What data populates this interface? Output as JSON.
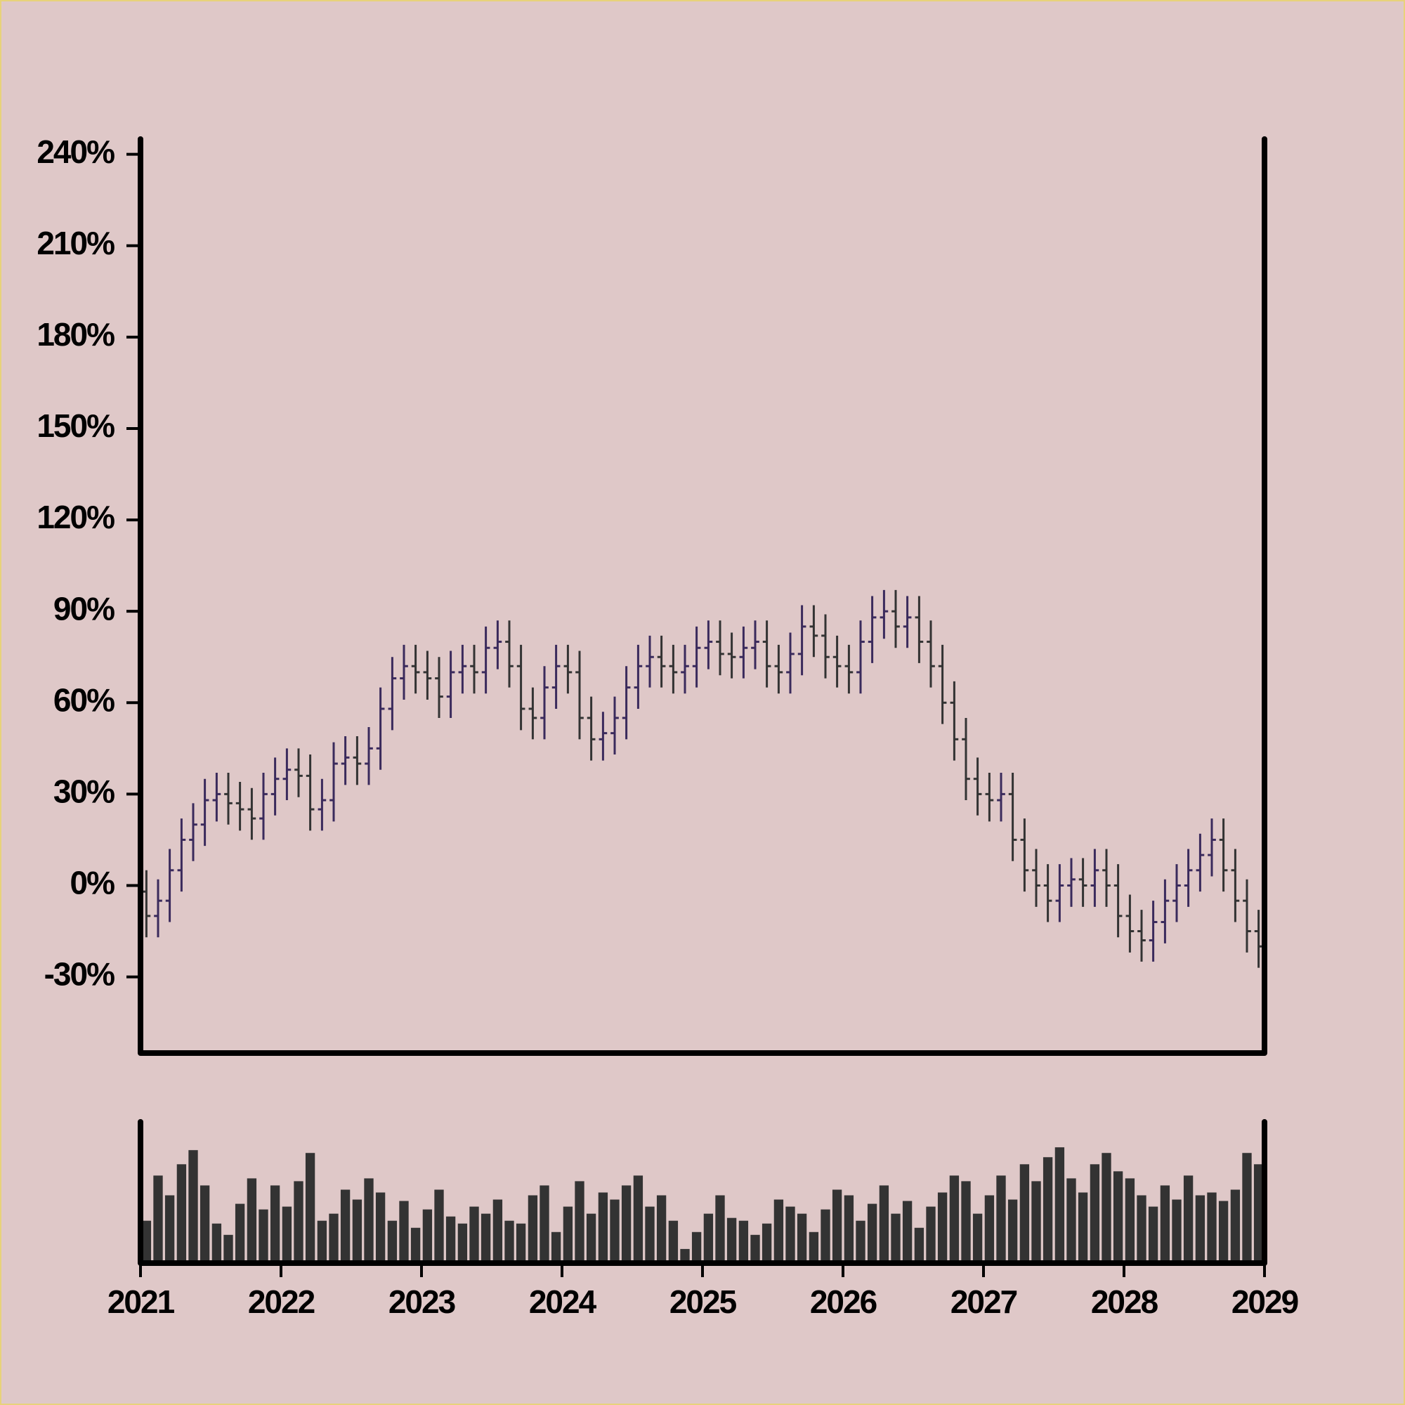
{
  "chart_data": {
    "type": "ohlc",
    "x": [
      2021.042,
      2021.125,
      2021.208,
      2021.292,
      2021.375,
      2021.458,
      2021.542,
      2021.625,
      2021.708,
      2021.792,
      2021.875,
      2021.958,
      2022.042,
      2022.125,
      2022.208,
      2022.292,
      2022.375,
      2022.458,
      2022.542,
      2022.625,
      2022.708,
      2022.792,
      2022.875,
      2022.958,
      2023.042,
      2023.125,
      2023.208,
      2023.292,
      2023.375,
      2023.458,
      2023.542,
      2023.625,
      2023.708,
      2023.792,
      2023.875,
      2023.958,
      2024.042,
      2024.125,
      2024.208,
      2024.292,
      2024.375,
      2024.458,
      2024.542,
      2024.625,
      2024.708,
      2024.792,
      2024.875,
      2024.958,
      2025.042,
      2025.125,
      2025.208,
      2025.292,
      2025.375,
      2025.458,
      2025.542,
      2025.625,
      2025.708,
      2025.792,
      2025.875,
      2025.958,
      2026.042,
      2026.125,
      2026.208,
      2026.292,
      2026.375,
      2026.458,
      2026.542,
      2026.625,
      2026.708,
      2026.792,
      2026.875,
      2026.958,
      2027.042,
      2027.125,
      2027.208,
      2027.292,
      2027.375,
      2027.458,
      2027.542,
      2027.625,
      2027.708,
      2027.792,
      2027.875,
      2027.958,
      2028.042,
      2028.125,
      2028.208,
      2028.292,
      2028.375,
      2028.458,
      2028.542,
      2028.625,
      2028.708,
      2028.792,
      2028.875,
      2028.958
    ],
    "open": [
      -2,
      -10,
      -5,
      5,
      15,
      20,
      28,
      30,
      27,
      25,
      22,
      30,
      35,
      38,
      36,
      25,
      28,
      40,
      42,
      40,
      45,
      58,
      68,
      72,
      70,
      68,
      62,
      70,
      72,
      70,
      78,
      80,
      72,
      58,
      55,
      65,
      72,
      70,
      55,
      48,
      50,
      55,
      65,
      72,
      75,
      72,
      70,
      72,
      78,
      80,
      76,
      75,
      78,
      80,
      72,
      70,
      76,
      85,
      82,
      75,
      72,
      70,
      80,
      88,
      90,
      85,
      88,
      80,
      72,
      60,
      48,
      35,
      30,
      28,
      30,
      15,
      5,
      0,
      -5,
      0,
      2,
      0,
      5,
      0,
      -10,
      -15,
      -18,
      -12,
      -5,
      0,
      5,
      10,
      15,
      5,
      -5,
      -15
    ],
    "high": [
      5,
      2,
      12,
      22,
      27,
      35,
      37,
      37,
      34,
      32,
      37,
      42,
      45,
      45,
      43,
      35,
      47,
      49,
      49,
      52,
      65,
      75,
      79,
      79,
      77,
      75,
      77,
      79,
      79,
      85,
      87,
      87,
      79,
      65,
      72,
      79,
      79,
      77,
      62,
      57,
      62,
      72,
      79,
      82,
      82,
      79,
      79,
      85,
      87,
      87,
      83,
      85,
      87,
      87,
      79,
      83,
      92,
      92,
      89,
      82,
      79,
      87,
      95,
      97,
      97,
      95,
      95,
      87,
      79,
      67,
      55,
      42,
      37,
      37,
      37,
      22,
      12,
      7,
      7,
      9,
      9,
      12,
      12,
      7,
      -3,
      -8,
      -5,
      2,
      7,
      12,
      17,
      22,
      22,
      12,
      2,
      -8
    ],
    "low": [
      -17,
      -17,
      -12,
      -2,
      8,
      13,
      21,
      20,
      18,
      15,
      15,
      23,
      28,
      29,
      18,
      18,
      21,
      33,
      33,
      33,
      38,
      51,
      61,
      63,
      61,
      55,
      55,
      63,
      63,
      63,
      71,
      65,
      51,
      48,
      48,
      58,
      63,
      48,
      41,
      41,
      43,
      48,
      58,
      65,
      65,
      63,
      63,
      65,
      71,
      69,
      68,
      68,
      71,
      65,
      63,
      63,
      69,
      75,
      68,
      65,
      63,
      63,
      73,
      81,
      78,
      78,
      73,
      65,
      53,
      41,
      28,
      23,
      21,
      21,
      8,
      -2,
      -7,
      -12,
      -12,
      -7,
      -7,
      -7,
      -7,
      -17,
      -22,
      -25,
      -25,
      -19,
      -12,
      -7,
      -2,
      3,
      -2,
      -12,
      -22,
      -27
    ],
    "close": [
      -10,
      -5,
      5,
      15,
      20,
      28,
      30,
      27,
      25,
      22,
      30,
      35,
      38,
      36,
      25,
      28,
      40,
      42,
      40,
      45,
      58,
      68,
      72,
      70,
      68,
      62,
      70,
      72,
      70,
      78,
      80,
      72,
      58,
      55,
      65,
      72,
      70,
      55,
      48,
      50,
      55,
      65,
      72,
      75,
      72,
      70,
      72,
      78,
      80,
      76,
      75,
      78,
      80,
      72,
      70,
      76,
      85,
      82,
      75,
      72,
      70,
      80,
      88,
      90,
      85,
      88,
      80,
      72,
      60,
      48,
      35,
      30,
      28,
      30,
      15,
      5,
      0,
      -5,
      0,
      2,
      0,
      5,
      0,
      -10,
      -15,
      -18,
      -12,
      -5,
      0,
      5,
      10,
      15,
      5,
      -5,
      -15,
      -20
    ],
    "volume": [
      30,
      62,
      48,
      70,
      80,
      55,
      28,
      20,
      42,
      60,
      38,
      55,
      40,
      58,
      78,
      30,
      35,
      52,
      45,
      60,
      50,
      30,
      44,
      25,
      38,
      52,
      33,
      28,
      40,
      35,
      45,
      30,
      28,
      48,
      55,
      22,
      40,
      58,
      35,
      50,
      45,
      55,
      62,
      40,
      48,
      30,
      10,
      22,
      35,
      48,
      32,
      30,
      20,
      28,
      45,
      40,
      35,
      22,
      38,
      52,
      48,
      30,
      42,
      55,
      35,
      44,
      25,
      40,
      50,
      62,
      58,
      35,
      48,
      62,
      45,
      70,
      58,
      75,
      82,
      60,
      50,
      70,
      78,
      65,
      60,
      48,
      40,
      55,
      45,
      62,
      48,
      50,
      44,
      52,
      78,
      70
    ],
    "up_color": "#3a2a5c",
    "down_color": "#333333",
    "volume_color": "#333333",
    "xlim": [
      2021,
      2029
    ],
    "xticks": [
      2021,
      2022,
      2023,
      2024,
      2025,
      2026,
      2027,
      2028,
      2029
    ],
    "ylim": [
      -55,
      245
    ],
    "yticks": [
      {
        "value": -30,
        "label": "-30%"
      },
      {
        "value": 0,
        "label": "0%"
      },
      {
        "value": 30,
        "label": "30%"
      },
      {
        "value": 60,
        "label": "60%"
      },
      {
        "value": 90,
        "label": "90%"
      },
      {
        "value": 120,
        "label": "120%"
      },
      {
        "value": 150,
        "label": "150%"
      },
      {
        "value": 180,
        "label": "180%"
      },
      {
        "value": 210,
        "label": "210%"
      },
      {
        "value": 240,
        "label": "240%"
      }
    ],
    "volume_ylim": [
      0,
      100
    ]
  }
}
